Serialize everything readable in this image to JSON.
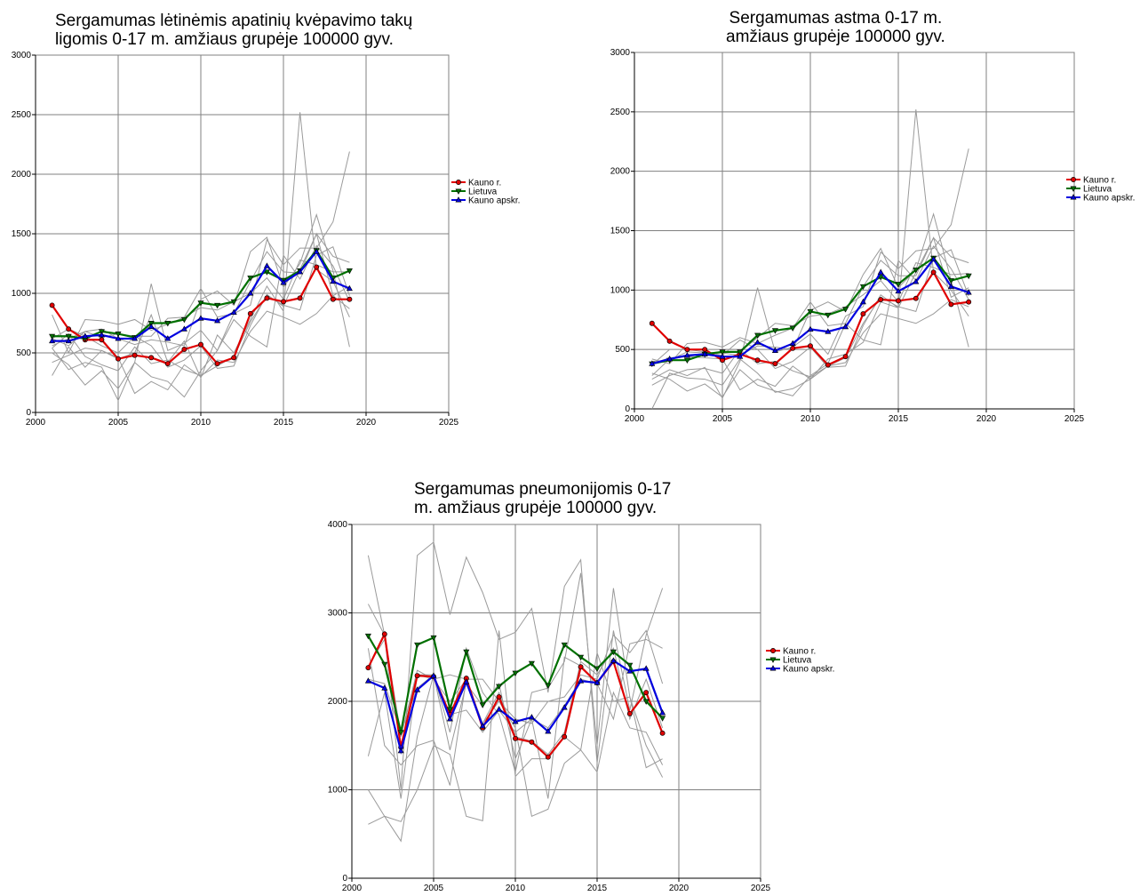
{
  "chart_data": [
    {
      "id": "copd",
      "type": "line",
      "title": "Sergamumas lėtinėmis apatinių kvėpavimo takų\nligomis 0-17 m. amžiaus grupėje 100000 gyv.",
      "xlim": [
        2000,
        2025
      ],
      "ylim": [
        0,
        3000
      ],
      "xticks": [
        2000,
        2005,
        2010,
        2015,
        2020,
        2025
      ],
      "yticks": [
        0,
        500,
        1000,
        1500,
        2000,
        2500,
        3000
      ],
      "xticklabels": [
        "2000",
        "2005",
        "2010",
        "2015",
        "2020",
        "2025"
      ],
      "yticklabels": [
        "0",
        "500",
        "1000",
        "1500",
        "2000",
        "2500",
        "3000"
      ],
      "grid": true,
      "legend": "right",
      "x": [
        2001,
        2002,
        2003,
        2004,
        2005,
        2006,
        2007,
        2008,
        2009,
        2010,
        2011,
        2012,
        2013,
        2014,
        2015,
        2016,
        2017,
        2018,
        2019
      ],
      "background_series": [
        [
          310,
          550,
          380,
          520,
          450,
          500,
          820,
          420,
          600,
          290,
          650,
          500,
          780,
          1060,
          850,
          2520,
          1200,
          1100,
          800
        ],
        [
          560,
          620,
          680,
          700,
          620,
          570,
          610,
          590,
          560,
          950,
          1020,
          900,
          1350,
          1470,
          1050,
          1250,
          1660,
          1190,
          550
        ],
        [
          500,
          400,
          230,
          350,
          200,
          420,
          300,
          260,
          130,
          350,
          520,
          780,
          640,
          550,
          1320,
          1120,
          1400,
          1230,
          930
        ],
        [
          420,
          480,
          540,
          520,
          460,
          160,
          260,
          190,
          400,
          300,
          440,
          420,
          680,
          850,
          800,
          740,
          830,
          980,
          870
        ],
        [
          820,
          500,
          780,
          770,
          740,
          780,
          690,
          740,
          800,
          1040,
          800,
          830,
          1100,
          1350,
          1180,
          1170,
          1500,
          1310,
          1260
        ],
        [
          540,
          360,
          420,
          380,
          100,
          420,
          1080,
          520,
          580,
          690,
          520,
          830,
          900,
          1450,
          1240,
          1380,
          1380,
          1600,
          2190
        ],
        [
          540,
          660,
          470,
          400,
          350,
          550,
          410,
          440,
          360,
          310,
          390,
          470,
          760,
          980,
          900,
          860,
          1320,
          1390,
          980
        ],
        [
          620,
          560,
          680,
          630,
          660,
          640,
          640,
          790,
          800,
          880,
          860,
          930,
          1000,
          1130,
          950,
          1280,
          1240,
          1180,
          1180
        ],
        [
          620,
          700,
          640,
          560,
          500,
          640,
          560,
          380,
          440,
          560,
          370,
          390,
          730,
          990,
          890,
          1200,
          1500,
          980,
          1060
        ]
      ],
      "series": [
        {
          "name": "Kauno r.",
          "color": "#e00000",
          "marker": "circle",
          "values": [
            900,
            700,
            610,
            610,
            450,
            480,
            460,
            410,
            530,
            570,
            410,
            460,
            830,
            960,
            930,
            960,
            1220,
            950,
            950
          ]
        },
        {
          "name": "Lietuva",
          "color": "#007000",
          "marker": "triangle-down",
          "values": [
            640,
            640,
            620,
            680,
            660,
            630,
            750,
            750,
            780,
            920,
            900,
            930,
            1130,
            1180,
            1110,
            1190,
            1360,
            1130,
            1190
          ]
        },
        {
          "name": "Kauno apskr.",
          "color": "#0000e0",
          "marker": "triangle-up",
          "values": [
            600,
            600,
            640,
            650,
            620,
            620,
            720,
            620,
            700,
            790,
            770,
            840,
            1000,
            1230,
            1090,
            1180,
            1350,
            1100,
            1040
          ]
        }
      ]
    },
    {
      "id": "asthma",
      "type": "line",
      "title": "Sergamumas astma 0-17 m.\namžiaus grupėje 100000 gyv.",
      "xlim": [
        2000,
        2025
      ],
      "ylim": [
        0,
        3000
      ],
      "xticks": [
        2000,
        2005,
        2010,
        2015,
        2020,
        2025
      ],
      "yticks": [
        0,
        500,
        1000,
        1500,
        2000,
        2500,
        3000
      ],
      "xticklabels": [
        "2000",
        "2005",
        "2010",
        "2015",
        "2020",
        "2025"
      ],
      "yticklabels": [
        "0",
        "500",
        "1000",
        "1500",
        "2000",
        "2500",
        "3000"
      ],
      "grid": true,
      "legend": "right",
      "x": [
        2001,
        2002,
        2003,
        2004,
        2005,
        2006,
        2007,
        2008,
        2009,
        2010,
        2011,
        2012,
        2013,
        2014,
        2015,
        2016,
        2017,
        2018,
        2019
      ],
      "background_series": [
        [
          0,
          300,
          260,
          250,
          200,
          420,
          300,
          140,
          170,
          250,
          420,
          460,
          560,
          900,
          850,
          2520,
          1150,
          1000,
          780
        ],
        [
          280,
          420,
          440,
          460,
          470,
          450,
          530,
          520,
          500,
          830,
          900,
          820,
          1130,
          1350,
          1020,
          1170,
          1640,
          1080,
          520
        ],
        [
          300,
          250,
          150,
          210,
          100,
          330,
          200,
          150,
          110,
          280,
          380,
          720,
          580,
          540,
          1250,
          1080,
          1370,
          1180,
          920
        ],
        [
          380,
          430,
          440,
          430,
          420,
          160,
          250,
          190,
          360,
          250,
          360,
          390,
          640,
          800,
          760,
          720,
          800,
          920,
          860
        ],
        [
          420,
          380,
          550,
          560,
          520,
          600,
          550,
          620,
          680,
          900,
          700,
          720,
          1030,
          1250,
          1120,
          1120,
          1440,
          1280,
          1230
        ],
        [
          250,
          330,
          280,
          350,
          90,
          400,
          1020,
          480,
          520,
          630,
          460,
          780,
          860,
          1320,
          1180,
          1330,
          1350,
          1550,
          2190
        ],
        [
          200,
          280,
          330,
          340,
          300,
          500,
          380,
          400,
          320,
          270,
          360,
          430,
          720,
          940,
          860,
          820,
          1270,
          1340,
          950
        ],
        [
          400,
          410,
          480,
          470,
          480,
          480,
          600,
          720,
          700,
          780,
          800,
          860,
          960,
          1080,
          900,
          1230,
          1190,
          1130,
          1140
        ],
        [
          370,
          500,
          500,
          480,
          450,
          580,
          500,
          340,
          400,
          520,
          350,
          360,
          700,
          960,
          850,
          1150,
          1440,
          940,
          1020
        ]
      ],
      "series": [
        {
          "name": "Kauno r.",
          "color": "#e00000",
          "marker": "circle",
          "values": [
            720,
            570,
            500,
            500,
            410,
            460,
            410,
            380,
            510,
            530,
            370,
            440,
            800,
            920,
            910,
            930,
            1150,
            880,
            900
          ]
        },
        {
          "name": "Lietuva",
          "color": "#007000",
          "marker": "triangle-down",
          "values": [
            380,
            410,
            410,
            460,
            480,
            480,
            620,
            660,
            680,
            820,
            790,
            840,
            1030,
            1110,
            1050,
            1170,
            1270,
            1080,
            1120
          ]
        },
        {
          "name": "Kauno apskr.",
          "color": "#0000e0",
          "marker": "triangle-up",
          "values": [
            380,
            420,
            450,
            460,
            440,
            440,
            560,
            490,
            550,
            670,
            650,
            690,
            900,
            1150,
            990,
            1070,
            1260,
            1030,
            980
          ]
        }
      ]
    },
    {
      "id": "pneumonia",
      "type": "line",
      "title": "Sergamumas pneumonijomis 0-17\nm. amžiaus grupėje 100000 gyv.",
      "xlim": [
        2000,
        2025
      ],
      "ylim": [
        0,
        4000
      ],
      "xticks": [
        2000,
        2005,
        2010,
        2015,
        2020,
        2025
      ],
      "yticks": [
        0,
        1000,
        2000,
        3000,
        4000
      ],
      "xticklabels": [
        "2000",
        "2005",
        "2010",
        "2015",
        "2020",
        "2025"
      ],
      "yticklabels": [
        "0",
        "1000",
        "2000",
        "3000",
        "4000"
      ],
      "grid": true,
      "legend": "right",
      "x": [
        2001,
        2002,
        2003,
        2004,
        2005,
        2006,
        2007,
        2008,
        2009,
        2010,
        2011,
        2012,
        2013,
        2014,
        2015,
        2016,
        2017,
        2018,
        2019
      ],
      "background_series": [
        [
          3650,
          2750,
          1000,
          3650,
          3800,
          2980,
          3630,
          3230,
          2700,
          2780,
          3050,
          2100,
          3300,
          3600,
          1300,
          2800,
          1900,
          2750,
          3280
        ],
        [
          3100,
          2750,
          1620,
          2300,
          2300,
          1650,
          2600,
          2100,
          1850,
          1200,
          2100,
          2150,
          2450,
          3450,
          1500,
          3280,
          2050,
          1500,
          1140
        ],
        [
          1000,
          700,
          420,
          1600,
          2300,
          1450,
          2200,
          1950,
          2200,
          1350,
          1800,
          900,
          2500,
          2400,
          2200,
          1800,
          2650,
          2700,
          2600
        ],
        [
          1380,
          2100,
          900,
          2300,
          2250,
          2300,
          2250,
          2250,
          2000,
          1800,
          1750,
          2000,
          2050,
          2300,
          2250,
          2750,
          2550,
          2800,
          2200
        ],
        [
          2600,
          1500,
          1280,
          1500,
          1560,
          1050,
          2250,
          1750,
          2000,
          1700,
          700,
          780,
          1300,
          1450,
          1200,
          2100,
          1700,
          1650,
          1280
        ],
        [
          610,
          700,
          640,
          1000,
          1500,
          1400,
          700,
          650,
          2800,
          1150,
          1350,
          1350,
          1600,
          1450,
          2550,
          2000,
          2050,
          1250,
          1350
        ],
        [
          2250,
          2200,
          1650,
          2150,
          2300,
          1850,
          1900,
          1650,
          1900,
          1650,
          1800,
          1700,
          1950,
          2250,
          2200,
          2450,
          2350,
          2350,
          1850
        ],
        [
          2400,
          2700,
          1600,
          2350,
          2250,
          2000,
          2250,
          1750,
          2100,
          1600,
          1550,
          1400,
          1650,
          2450,
          2300,
          2600,
          1800,
          2250,
          1700
        ]
      ],
      "series": [
        {
          "name": "Kauno r.",
          "color": "#e00000",
          "marker": "circle",
          "values": [
            2380,
            2760,
            1480,
            2290,
            2280,
            1850,
            2260,
            1700,
            2050,
            1580,
            1540,
            1370,
            1600,
            2390,
            2210,
            2450,
            1860,
            2100,
            1640
          ]
        },
        {
          "name": "Lietuva",
          "color": "#007000",
          "marker": "triangle-down",
          "values": [
            2740,
            2420,
            1650,
            2640,
            2720,
            1910,
            2560,
            1960,
            2170,
            2320,
            2430,
            2180,
            2640,
            2500,
            2370,
            2560,
            2410,
            2000,
            1810
          ]
        },
        {
          "name": "Kauno apskr.",
          "color": "#0000e0",
          "marker": "triangle-up",
          "values": [
            2230,
            2150,
            1440,
            2130,
            2290,
            1800,
            2220,
            1720,
            1910,
            1770,
            1820,
            1660,
            1930,
            2230,
            2210,
            2460,
            2340,
            2370,
            1870
          ]
        }
      ]
    }
  ]
}
